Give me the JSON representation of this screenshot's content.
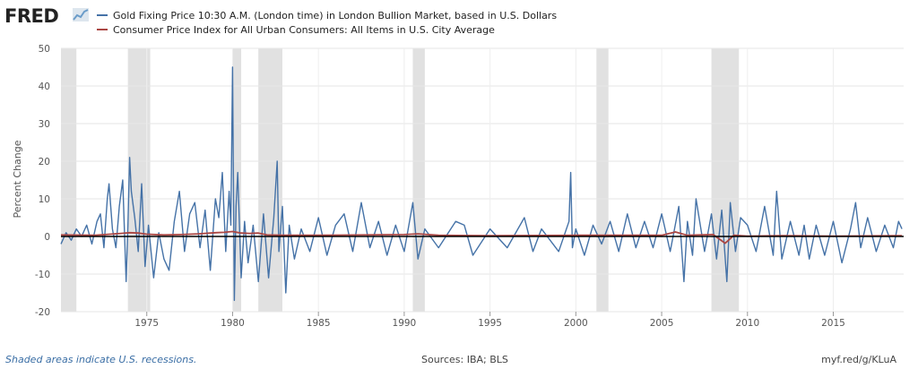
{
  "logo": {
    "text": "FRED"
  },
  "footer": {
    "recession_note": "Shaded areas indicate U.S. recessions.",
    "sources": "Sources: IBA; BLS",
    "link": "myf.red/g/KLuA"
  },
  "colors": {
    "gold_series": "#4572a7",
    "cpi_series": "#aa4643",
    "recession_shade": "#e1e1e1",
    "zero_line": "#000000"
  },
  "chart_data": {
    "type": "line",
    "title": "",
    "xlabel": "",
    "ylabel": "Percent Change",
    "xlim": [
      1970.0,
      2019.1
    ],
    "ylim": [
      -20,
      50
    ],
    "yticks": [
      -20,
      -10,
      0,
      10,
      20,
      30,
      40,
      50
    ],
    "xticks": [
      1975,
      1980,
      1985,
      1990,
      1995,
      2000,
      2005,
      2010,
      2015
    ],
    "grid": true,
    "legend": "top-left",
    "recessions": [
      [
        1970.0,
        1970.9
      ],
      [
        1973.9,
        1975.2
      ],
      [
        1980.0,
        1980.5
      ],
      [
        1981.5,
        1982.9
      ],
      [
        1990.5,
        1991.2
      ],
      [
        2001.2,
        2001.9
      ],
      [
        2007.9,
        2009.5
      ]
    ],
    "series": [
      {
        "name": "Gold Fixing Price 10:30 A.M. (London time) in London Bullion Market, based in U.S. Dollars",
        "color": "#4572a7",
        "x": [
          1970.0,
          1970.3,
          1970.6,
          1970.9,
          1971.2,
          1971.5,
          1971.8,
          1972.1,
          1972.3,
          1972.5,
          1972.7,
          1972.8,
          1973.0,
          1973.2,
          1973.4,
          1973.6,
          1973.8,
          1973.9,
          1974.0,
          1974.1,
          1974.3,
          1974.5,
          1974.7,
          1974.9,
          1975.1,
          1975.4,
          1975.7,
          1976.0,
          1976.3,
          1976.6,
          1976.9,
          1977.2,
          1977.5,
          1977.8,
          1978.1,
          1978.4,
          1978.7,
          1979.0,
          1979.2,
          1979.4,
          1979.6,
          1979.8,
          1979.9,
          1980.0,
          1980.1,
          1980.2,
          1980.3,
          1980.5,
          1980.7,
          1980.9,
          1981.2,
          1981.5,
          1981.8,
          1982.1,
          1982.4,
          1982.6,
          1982.7,
          1982.9,
          1983.1,
          1983.3,
          1983.6,
          1984.0,
          1984.5,
          1985.0,
          1985.5,
          1986.0,
          1986.5,
          1987.0,
          1987.5,
          1988.0,
          1988.5,
          1989.0,
          1989.5,
          1990.0,
          1990.5,
          1990.8,
          1991.2,
          1992.0,
          1993.0,
          1993.5,
          1994.0,
          1995.0,
          1996.0,
          1997.0,
          1997.5,
          1998.0,
          1999.0,
          1999.6,
          1999.7,
          1999.8,
          2000.0,
          2000.5,
          2001.0,
          2001.5,
          2002.0,
          2002.5,
          2003.0,
          2003.5,
          2004.0,
          2004.5,
          2005.0,
          2005.5,
          2006.0,
          2006.3,
          2006.5,
          2006.8,
          2007.0,
          2007.5,
          2007.9,
          2008.2,
          2008.5,
          2008.8,
          2009.0,
          2009.3,
          2009.6,
          2010.0,
          2010.5,
          2011.0,
          2011.5,
          2011.7,
          2012.0,
          2012.5,
          2013.0,
          2013.3,
          2013.6,
          2014.0,
          2014.5,
          2015.0,
          2015.5,
          2016.0,
          2016.3,
          2016.6,
          2017.0,
          2017.5,
          2018.0,
          2018.5,
          2018.8,
          2019.0
        ],
        "y": [
          -2,
          1,
          -1,
          2,
          0,
          3,
          -2,
          4,
          6,
          -3,
          10,
          14,
          2,
          -3,
          8,
          15,
          -12,
          3,
          21,
          12,
          5,
          -4,
          14,
          -8,
          3,
          -11,
          1,
          -6,
          -9,
          4,
          12,
          -4,
          6,
          9,
          -3,
          7,
          -9,
          10,
          5,
          17,
          -4,
          12,
          3,
          45,
          -17,
          8,
          17,
          -11,
          4,
          -7,
          3,
          -12,
          6,
          -11,
          5,
          20,
          -4,
          8,
          -15,
          3,
          -6,
          2,
          -4,
          5,
          -5,
          3,
          6,
          -4,
          9,
          -3,
          4,
          -5,
          3,
          -4,
          9,
          -6,
          2,
          -3,
          4,
          3,
          -5,
          2,
          -3,
          5,
          -4,
          2,
          -4,
          4,
          17,
          -3,
          2,
          -5,
          3,
          -2,
          4,
          -4,
          6,
          -3,
          4,
          -3,
          6,
          -4,
          8,
          -12,
          4,
          -5,
          10,
          -4,
          6,
          -6,
          7,
          -12,
          9,
          -4,
          5,
          3,
          -4,
          8,
          -5,
          12,
          -6,
          4,
          -5,
          3,
          -6,
          3,
          -5,
          4,
          -7,
          2,
          9,
          -3,
          5,
          -4,
          3,
          -3,
          4,
          2
        ]
      },
      {
        "name": "Consumer Price Index for All Urban Consumers: All Items in U.S. City Average",
        "color": "#aa4643",
        "x": [
          1970.0,
          1972.0,
          1973.5,
          1974.0,
          1974.5,
          1975.0,
          1976.0,
          1977.0,
          1978.0,
          1979.0,
          1979.5,
          1980.0,
          1980.5,
          1981.0,
          1981.5,
          1982.0,
          1983.0,
          1985.0,
          1990.0,
          1990.8,
          1992.0,
          1995.0,
          2000.0,
          2005.0,
          2005.8,
          2006.5,
          2008.0,
          2008.7,
          2008.9,
          2009.2,
          2010.0,
          2012.0,
          2015.0,
          2019.0
        ],
        "y": [
          0.4,
          0.3,
          0.8,
          1.0,
          0.9,
          0.6,
          0.4,
          0.5,
          0.7,
          1.0,
          1.1,
          1.3,
          0.9,
          0.8,
          0.9,
          0.4,
          0.3,
          0.3,
          0.5,
          0.7,
          0.3,
          0.2,
          0.3,
          0.3,
          1.2,
          0.3,
          0.5,
          -1.8,
          -1.0,
          0.3,
          0.1,
          0.2,
          0.1,
          0.2
        ]
      }
    ]
  }
}
